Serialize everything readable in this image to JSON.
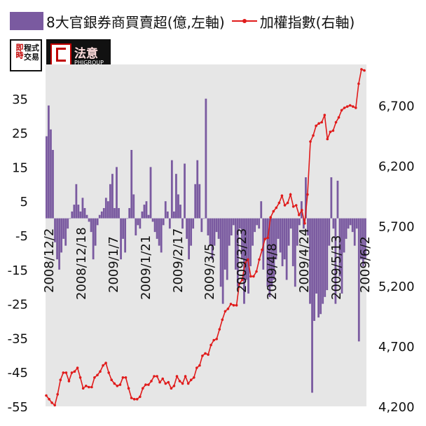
{
  "legend": {
    "bar_prefix": "8大官銀券商買賣超(億,左軸)",
    "line_label": "加權指數(右軸)"
  },
  "logos": {
    "logo1_a": "即時",
    "logo1_b": "程式交易",
    "logo2_cn": "法意",
    "logo2_en": "PHIGROUP"
  },
  "colors": {
    "bar": "#7a5aa0",
    "line": "#e01b1b",
    "plot_bg": "#e6e6e6"
  },
  "chart_data": {
    "type": "bar+line",
    "x_tick_labels": [
      "2008/12/2",
      "2008/12/18",
      "2009/1/7",
      "2009/1/21",
      "2009/2/17",
      "2009/3/5",
      "2009/3/23",
      "2009/4/8",
      "2009/4/24",
      "2009/5/13",
      "2009/6/2"
    ],
    "left_axis": {
      "ylim": [
        -55,
        45
      ],
      "ticks": [
        35,
        25,
        15,
        5,
        -5,
        -15,
        -25,
        -35,
        -45,
        -55
      ]
    },
    "right_axis": {
      "ylim": [
        4200,
        7040
      ],
      "ticks": [
        "6,700",
        "6,200",
        "5,700",
        "5,200",
        "4,700",
        "4,200"
      ]
    },
    "series": [
      {
        "name": "8大官銀券商買賣超(億,左軸)",
        "kind": "bar",
        "axis": "left",
        "values": [
          24,
          33,
          26,
          20,
          -7,
          -12,
          -15,
          -10,
          -6,
          -8,
          -3,
          0,
          2,
          4,
          10,
          4,
          2,
          6,
          3,
          1,
          -1,
          -4,
          -12,
          -8,
          -2,
          1,
          2,
          3,
          6,
          5,
          10,
          13,
          3,
          15,
          3,
          -12,
          -6,
          -10,
          0,
          3,
          20,
          7,
          -5,
          -2,
          -3,
          2,
          4,
          5,
          1,
          15,
          -1,
          -4,
          -6,
          -8,
          -10,
          -2,
          5,
          2,
          -3,
          17,
          2,
          13,
          7,
          4,
          -3,
          16,
          -6,
          -12,
          -8,
          -3,
          10,
          17,
          10,
          -4,
          0,
          35,
          -5,
          -8,
          -12,
          -8,
          -4,
          -6,
          -20,
          -25,
          -15,
          -18,
          -8,
          -5,
          -2,
          -15,
          -20,
          -3,
          -12,
          -25,
          -18,
          -22,
          -14,
          -8,
          -4,
          -2,
          -3,
          5,
          -15,
          -6,
          -20,
          -23,
          -20,
          -18,
          -12,
          -6,
          -10,
          -14,
          -12,
          -18,
          -8,
          -3,
          -14,
          -20,
          -8,
          -2,
          5,
          -3,
          12,
          -5,
          -25,
          -51,
          -30,
          -22,
          -29,
          -28,
          -25,
          -23,
          -21,
          -8,
          12,
          -3,
          -25,
          11,
          -17,
          -22,
          -10,
          -6,
          -3,
          -2,
          -4,
          -8,
          -3,
          -36,
          -12,
          -14,
          -12
        ]
      },
      {
        "name": "加權指數(右軸)",
        "kind": "line",
        "axis": "right",
        "values": [
          4290,
          4260,
          4230,
          4210,
          4300,
          4420,
          4480,
          4480,
          4410,
          4480,
          4490,
          4520,
          4440,
          4350,
          4370,
          4360,
          4360,
          4440,
          4460,
          4490,
          4540,
          4560,
          4480,
          4420,
          4390,
          4370,
          4380,
          4440,
          4440,
          4350,
          4270,
          4260,
          4260,
          4280,
          4350,
          4380,
          4380,
          4410,
          4450,
          4450,
          4400,
          4430,
          4390,
          4400,
          4350,
          4370,
          4450,
          4410,
          4390,
          4450,
          4390,
          4420,
          4440,
          4520,
          4540,
          4620,
          4640,
          4630,
          4710,
          4750,
          4760,
          4840,
          4920,
          4990,
          5010,
          5050,
          5040,
          5040,
          5220,
          5250,
          5390,
          5420,
          5280,
          5280,
          5320,
          5420,
          5500,
          5590,
          5600,
          5770,
          5820,
          5850,
          5890,
          5950,
          5870,
          5890,
          5960,
          5860,
          5870,
          5790,
          5830,
          5720,
          5960,
          6400,
          6450,
          6530,
          6550,
          6560,
          6620,
          6420,
          6480,
          6490,
          6560,
          6600,
          6660,
          6680,
          6690,
          6700,
          6690,
          6680,
          6880,
          7000,
          6990
        ]
      }
    ]
  }
}
